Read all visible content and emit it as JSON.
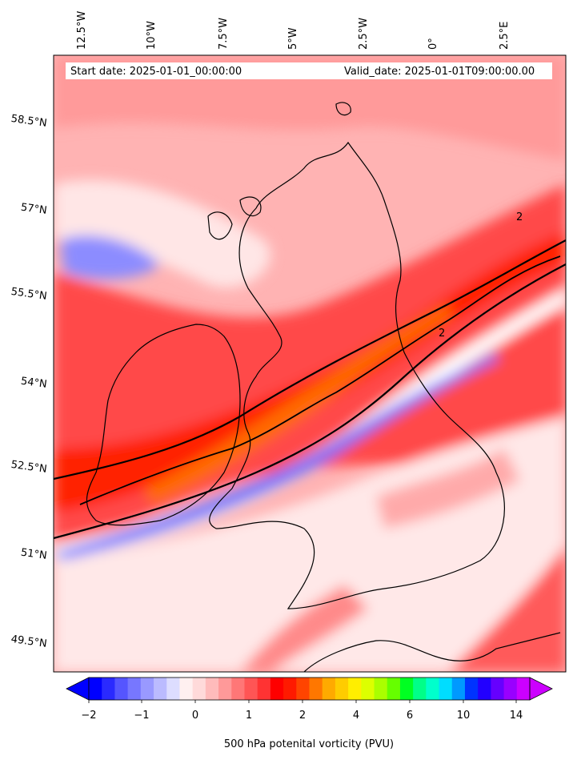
{
  "map": {
    "start_date": "Start date: 2025-01-01_00:00:00",
    "valid_date": "Valid_date: 2025-01-01T09:00:00.00",
    "lon_labels": [
      "12.5°W",
      "10°W",
      "7.5°W",
      "5°W",
      "2.5°W",
      "0°",
      "2.5°E"
    ],
    "lat_labels": [
      "58.5°N",
      "57°N",
      "55.5°N",
      "54°N",
      "52.5°N",
      "51°N",
      "49.5°N"
    ],
    "contour_label": "2",
    "colors": {
      "background": "#ffffff",
      "coastline": "#000000",
      "contour": "#000000"
    }
  },
  "colorbar": {
    "label": "500 hPa potenital vorticity (PVU)",
    "ticks": [
      "−2",
      "−1",
      "0",
      "1",
      "2",
      "4",
      "6",
      "10",
      "14"
    ],
    "colors": [
      "#0000ff",
      "#2a2aff",
      "#5555ff",
      "#7777ff",
      "#9999ff",
      "#bbbbff",
      "#ddddff",
      "#fff0f0",
      "#ffdada",
      "#ffbbbb",
      "#ff9999",
      "#ff7777",
      "#ff5555",
      "#ff3333",
      "#ff0000",
      "#ff1a00",
      "#ff4400",
      "#ff7700",
      "#ffaa00",
      "#ffcc00",
      "#ffee00",
      "#ddff00",
      "#aaff00",
      "#66ff00",
      "#00ff22",
      "#00ff88",
      "#00ffcc",
      "#00ddff",
      "#0099ff",
      "#0033ff",
      "#2200ff",
      "#6600ff",
      "#9900ff",
      "#cc00ff"
    ],
    "extend_low_color": "#0000ff",
    "extend_high_color": "#cc00ff"
  }
}
